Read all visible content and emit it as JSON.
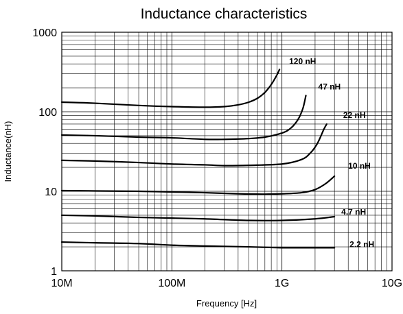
{
  "chart_data": {
    "type": "line",
    "title": "Inductance characteristics",
    "xlabel": "Frequency [Hz]",
    "ylabel": "Inductance(nH)",
    "x_scale": "log",
    "y_scale": "log",
    "xlim": [
      10000000,
      10000000000
    ],
    "ylim": [
      1,
      1000
    ],
    "grid": true,
    "x_ticks": [
      {
        "value": 10000000,
        "label": "10M"
      },
      {
        "value": 100000000,
        "label": "100M"
      },
      {
        "value": 1000000000,
        "label": "1G"
      },
      {
        "value": 10000000000,
        "label": "10G"
      }
    ],
    "y_ticks": [
      {
        "value": 1,
        "label": "1"
      },
      {
        "value": 10,
        "label": "10"
      },
      {
        "value": 100,
        "label": "100"
      },
      {
        "value": 1000,
        "label": "1000"
      }
    ],
    "series": [
      {
        "name": "120 nH",
        "label": "120 nH",
        "points": [
          [
            10000000,
            132
          ],
          [
            20000000,
            128
          ],
          [
            50000000,
            120
          ],
          [
            100000000,
            116
          ],
          [
            200000000,
            114
          ],
          [
            300000000,
            116
          ],
          [
            400000000,
            122
          ],
          [
            500000000,
            132
          ],
          [
            600000000,
            148
          ],
          [
            700000000,
            175
          ],
          [
            800000000,
            220
          ],
          [
            900000000,
            290
          ],
          [
            950000000,
            340
          ]
        ]
      },
      {
        "name": "47 nH",
        "label": "47 nH",
        "points": [
          [
            10000000,
            51
          ],
          [
            20000000,
            50
          ],
          [
            50000000,
            48
          ],
          [
            100000000,
            47
          ],
          [
            200000000,
            45
          ],
          [
            300000000,
            45
          ],
          [
            500000000,
            46
          ],
          [
            700000000,
            48
          ],
          [
            1000000000,
            54
          ],
          [
            1200000000,
            62
          ],
          [
            1400000000,
            80
          ],
          [
            1550000000,
            110
          ],
          [
            1650000000,
            160
          ]
        ]
      },
      {
        "name": "22 nH",
        "label": "22 nH",
        "points": [
          [
            10000000,
            24.5
          ],
          [
            20000000,
            24
          ],
          [
            50000000,
            23
          ],
          [
            100000000,
            22
          ],
          [
            200000000,
            21.5
          ],
          [
            300000000,
            21
          ],
          [
            500000000,
            21.2
          ],
          [
            1000000000,
            22
          ],
          [
            1500000000,
            25
          ],
          [
            1800000000,
            30
          ],
          [
            2100000000,
            40
          ],
          [
            2400000000,
            60
          ],
          [
            2550000000,
            70
          ]
        ]
      },
      {
        "name": "10 nH",
        "label": "10 nH",
        "points": [
          [
            10000000,
            10.2
          ],
          [
            20000000,
            10.1
          ],
          [
            50000000,
            10
          ],
          [
            100000000,
            9.8
          ],
          [
            200000000,
            9.6
          ],
          [
            400000000,
            9.3
          ],
          [
            700000000,
            9.2
          ],
          [
            1000000000,
            9.3
          ],
          [
            1500000000,
            9.6
          ],
          [
            2000000000,
            10.5
          ],
          [
            2500000000,
            12.5
          ],
          [
            3000000000,
            15.5
          ]
        ]
      },
      {
        "name": "4.7 nH",
        "label": "4.7 nH",
        "points": [
          [
            10000000,
            5
          ],
          [
            20000000,
            4.9
          ],
          [
            50000000,
            4.7
          ],
          [
            100000000,
            4.6
          ],
          [
            200000000,
            4.5
          ],
          [
            500000000,
            4.3
          ],
          [
            1000000000,
            4.3
          ],
          [
            2000000000,
            4.5
          ],
          [
            3000000000,
            4.8
          ]
        ]
      },
      {
        "name": "2.2 nH",
        "label": "2.2 nH",
        "points": [
          [
            10000000,
            2.3
          ],
          [
            20000000,
            2.25
          ],
          [
            50000000,
            2.2
          ],
          [
            100000000,
            2.1
          ],
          [
            200000000,
            2.05
          ],
          [
            500000000,
            2.0
          ],
          [
            1000000000,
            1.95
          ],
          [
            2000000000,
            1.95
          ],
          [
            3000000000,
            1.95
          ]
        ]
      }
    ]
  }
}
